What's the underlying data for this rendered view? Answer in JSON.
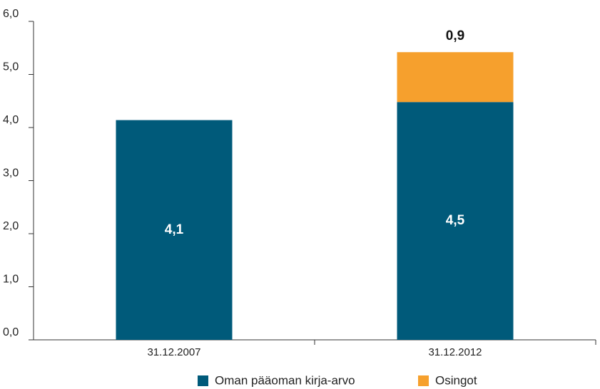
{
  "chart_data": {
    "type": "stacked_bar",
    "categories": [
      "31.12.2007",
      "31.12.2012"
    ],
    "series": [
      {
        "name": "Oman pääoman kirja-arvo",
        "color": "#005a7a",
        "values": [
          4.14,
          4.48
        ],
        "value_labels": [
          "4,1",
          "4,5"
        ]
      },
      {
        "name": "Osingot",
        "color": "#f6a02d",
        "values": [
          null,
          0.94
        ],
        "value_labels": [
          null,
          "0,9"
        ]
      }
    ],
    "ylim": [
      0,
      6
    ],
    "yticks": [
      {
        "value": 0,
        "label": "0,0"
      },
      {
        "value": 1,
        "label": "1,0"
      },
      {
        "value": 2,
        "label": "2,0"
      },
      {
        "value": 3,
        "label": "3,0"
      },
      {
        "value": 4,
        "label": "4,0"
      },
      {
        "value": 5,
        "label": "5,0"
      },
      {
        "value": 6,
        "label": "6,0"
      }
    ],
    "legend": "bottom"
  }
}
